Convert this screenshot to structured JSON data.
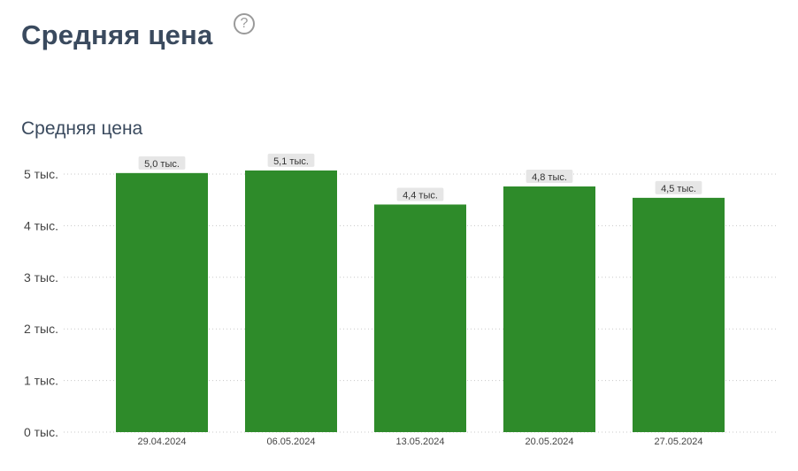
{
  "header": {
    "title": "Средняя цена",
    "help_icon": "question-circle-icon",
    "help_symbol": "?"
  },
  "chart_data": {
    "type": "bar",
    "title": "Средняя цена",
    "categories": [
      "29.04.2024",
      "06.05.2024",
      "13.05.2024",
      "20.05.2024",
      "27.05.2024"
    ],
    "values": [
      5020,
      5070,
      4410,
      4760,
      4540
    ],
    "data_labels": [
      "5,0 тыс.",
      "5,1 тыс.",
      "4,4 тыс.",
      "4,8 тыс.",
      "4,5 тыс."
    ],
    "y_ticks": [
      0,
      1000,
      2000,
      3000,
      4000,
      5000
    ],
    "y_tick_labels": [
      "0 тыс.",
      "1 тыс.",
      "2 тыс.",
      "3 тыс.",
      "4 тыс.",
      "5 тыс."
    ],
    "xlabel": "",
    "ylabel": "",
    "ylim": [
      0,
      5000
    ],
    "grid": true,
    "legend": "none",
    "bar_color": "#2e8b2a",
    "label_bg_color": "#e6e6e6"
  }
}
